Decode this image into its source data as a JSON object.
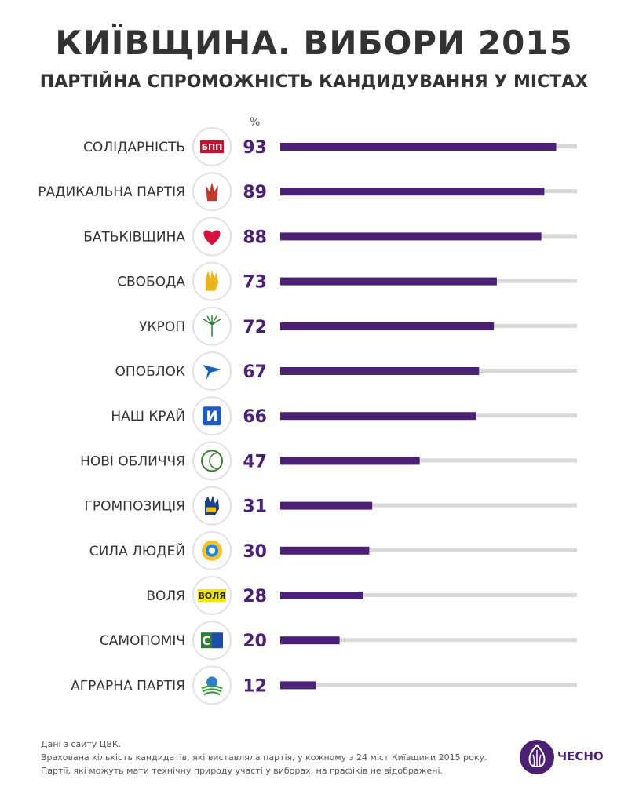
{
  "header": {
    "title": "КИЇВЩИНА. ВИБОРИ 2015",
    "subtitle": "ПАРТІЙНА СПРОМОЖНІСТЬ КАНДИДУВАННЯ У МІСТАХ"
  },
  "colors": {
    "bar": "#4b2075",
    "track": "#d9d9d9",
    "label": "#333333",
    "value": "#4b2075"
  },
  "chart_data": {
    "type": "bar",
    "orientation": "horizontal",
    "title": "КИЇВЩИНА. ВИБОРИ 2015",
    "subtitle": "ПАРТІЙНА СПРОМОЖНІСТЬ КАНДИДУВАННЯ У МІСТАХ",
    "unit_label": "%",
    "xlim": [
      0,
      100
    ],
    "categories": [
      "СОЛІДАРНІСТЬ",
      "РАДИКАЛЬНА ПАРТІЯ",
      "БАТЬКІВЩИНА",
      "СВОБОДА",
      "УКРОП",
      "ОПОБЛОК",
      "НАШ КРАЙ",
      "НОВІ ОБЛИЧЧЯ",
      "ГРОМПОЗИЦІЯ",
      "СИЛА ЛЮДЕЙ",
      "ВОЛЯ",
      "САМОПОМІЧ",
      "АГРАРНА ПАРТІЯ"
    ],
    "values": [
      93,
      89,
      88,
      73,
      72,
      67,
      66,
      47,
      31,
      30,
      28,
      20,
      12
    ],
    "logos": [
      {
        "icon": "bpp-logo-icon",
        "text": "БПП"
      },
      {
        "icon": "radical-party-trident-icon",
        "text": ""
      },
      {
        "icon": "batkivshchyna-heart-icon",
        "text": ""
      },
      {
        "icon": "svoboda-hand-icon",
        "text": ""
      },
      {
        "icon": "ukrop-dill-icon",
        "text": ""
      },
      {
        "icon": "opoblok-bird-icon",
        "text": ""
      },
      {
        "icon": "nash-krai-icon",
        "text": "И"
      },
      {
        "icon": "novi-oblychchia-profile-icon",
        "text": ""
      },
      {
        "icon": "hrompozytsiia-hand-icon",
        "text": ""
      },
      {
        "icon": "syla-liudei-sun-icon",
        "text": ""
      },
      {
        "icon": "volia-logo-icon",
        "text": "ВОЛЯ"
      },
      {
        "icon": "samopomich-logo-icon",
        "text": "С"
      },
      {
        "icon": "ahrarna-partiia-sun-icon",
        "text": ""
      }
    ]
  },
  "footer": {
    "lines": [
      "Дані з сайту ЦВК.",
      "Врахована кількість кандидатів, які виставляла партія, у кожному з 24 міст Київщини 2015 року.",
      "Партії, які можуть мати технічну природу участі у виборах, на графіків не відображені."
    ]
  },
  "brand": {
    "name": "ЧЕСНО",
    "icon": "chesno-garlic-icon"
  }
}
